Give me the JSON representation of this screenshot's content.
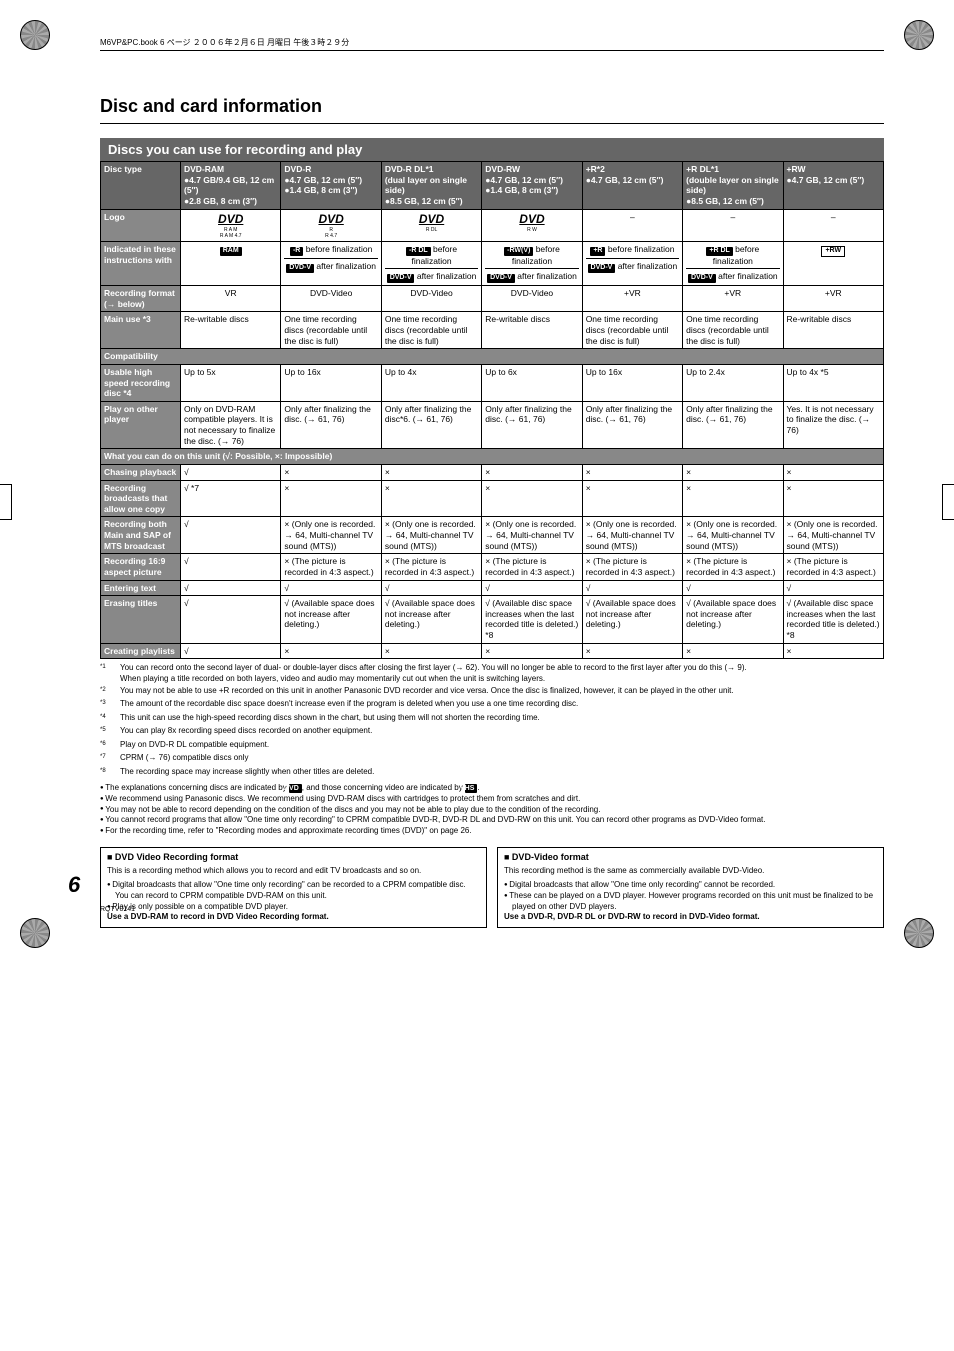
{
  "meta": {
    "file_line": "M6VP&PC.book 6 ページ ２００６年２月６日 月曜日 午後３時２９分",
    "page_number": "6",
    "page_code": "RQTV0141"
  },
  "title": "Disc and card information",
  "section_title": "Discs you can use for recording and play",
  "row_labels": {
    "disc_type": "Disc type",
    "logo": "Logo",
    "indicated": "Indicated in these instructions with",
    "rec_format": "Recording format (→ below)",
    "main_use": "Main use *3",
    "compat": "Compatibility",
    "speed": "Usable high speed recording disc *4",
    "play_other": "Play on other player",
    "what_you_can": "What you can do on this unit (√: Possible, ×: Impossible)",
    "chasing": "Chasing playback",
    "rec_one": "Recording broadcasts that allow one copy",
    "rec_sap": "Recording both Main and SAP of MTS broadcast",
    "rec_169": "Recording 16:9 aspect picture",
    "enter_text": "Entering text",
    "erase": "Erasing titles",
    "playlists": "Creating playlists"
  },
  "cols": [
    {
      "type": "DVD-RAM",
      "type_detail": "●4.7 GB/9.4 GB, 12 cm (5″)\n●2.8 GB, 8 cm (3″)",
      "logo_sub": "R A M\nR A M 4.7",
      "indicated_top": "RAM",
      "indicated_top_class": "tag",
      "indicated_bottom": "",
      "rec_format": "VR",
      "main_use": "Re-writable discs",
      "speed": "Up to 5x",
      "play_other": "Only on DVD-RAM compatible players. It is not necessary to finalize the disc. (→ 76)",
      "chasing": "√",
      "rec_one": "√ *7",
      "rec_sap": "√",
      "rec_169": "√",
      "enter_text": "√",
      "erase": "√",
      "playlists": "√"
    },
    {
      "type": "DVD-R",
      "type_detail": "●4.7 GB, 12 cm (5″)\n●1.4 GB, 8 cm (3″)",
      "logo_sub": "R\nR 4.7",
      "indicated_top": "-R",
      "indicated_top_suffix": " before finalization",
      "indicated_bottom": "DVD-V",
      "indicated_bottom_suffix": " after finalization",
      "rec_format": "DVD-Video",
      "main_use": "One time recording discs (recordable until the disc is full)",
      "speed": "Up to 16x",
      "play_other": "Only after finalizing the disc. (→ 61, 76)",
      "chasing": "×",
      "rec_one": "×",
      "rec_sap": "× (Only one is recorded. → 64, Multi-channel TV sound (MTS))",
      "rec_169": "× (The picture is recorded in 4:3 aspect.)",
      "enter_text": "√",
      "erase": "√ (Available space does not increase after deleting.)",
      "playlists": "×"
    },
    {
      "type": "DVD-R DL*1",
      "type_bold": "(dual layer on single side)",
      "type_detail": "●8.5 GB, 12 cm (5″)",
      "logo_sub": "R DL",
      "indicated_top": "-R DL",
      "indicated_top_suffix": " before finalization",
      "indicated_bottom": "DVD-V",
      "indicated_bottom_suffix": " after finalization",
      "rec_format": "DVD-Video",
      "main_use": "One time recording discs (recordable until the disc is full)",
      "speed": "Up to 4x",
      "play_other": "Only after finalizing the disc*6. (→ 61, 76)",
      "chasing": "×",
      "rec_one": "×",
      "rec_sap": "× (Only one is recorded. → 64, Multi-channel TV sound (MTS))",
      "rec_169": "× (The picture is recorded in 4:3 aspect.)",
      "enter_text": "√",
      "erase": "√ (Available space does not increase after deleting.)",
      "playlists": "×"
    },
    {
      "type": "DVD-RW",
      "type_detail": "●4.7 GB, 12 cm (5″)\n●1.4 GB, 8 cm (3″)",
      "logo_sub": "R W",
      "indicated_top": "-RW(V)",
      "indicated_top_suffix": " before finalization",
      "indicated_bottom": "DVD-V",
      "indicated_bottom_suffix": " after finalization",
      "rec_format": "DVD-Video",
      "main_use": "Re-writable discs",
      "speed": "Up to 6x",
      "play_other": "Only after finalizing the disc. (→ 61, 76)",
      "chasing": "×",
      "rec_one": "×",
      "rec_sap": "× (Only one is recorded. → 64, Multi-channel TV sound (MTS))",
      "rec_169": "× (The picture is recorded in 4:3 aspect.)",
      "enter_text": "√",
      "erase": "√ (Available disc space increases when the last recorded title is deleted.) *8",
      "playlists": "×"
    },
    {
      "type": "+R*2",
      "type_detail": "●4.7 GB, 12 cm (5″)",
      "logo_sub": "–",
      "indicated_top": "+R",
      "indicated_top_suffix": " before finalization",
      "indicated_bottom": "DVD-V",
      "indicated_bottom_suffix": " after finalization",
      "rec_format": "+VR",
      "main_use": "One time recording discs (recordable until the disc is full)",
      "speed": "Up to 16x",
      "play_other": "Only after finalizing the disc. (→ 61, 76)",
      "chasing": "×",
      "rec_one": "×",
      "rec_sap": "× (Only one is recorded. → 64, Multi-channel TV sound (MTS))",
      "rec_169": "× (The picture is recorded in 4:3 aspect.)",
      "enter_text": "√",
      "erase": "√ (Available space does not increase after deleting.)",
      "playlists": "×"
    },
    {
      "type": "+R DL*1",
      "type_bold": "(double layer on single side)",
      "type_detail": "●8.5 GB, 12 cm (5″)",
      "logo_sub": "–",
      "indicated_top": "+R DL",
      "indicated_top_suffix": " before finalization",
      "indicated_bottom": "DVD-V",
      "indicated_bottom_suffix": " after finalization",
      "rec_format": "+VR",
      "main_use": "One time recording discs (recordable until the disc is full)",
      "speed": "Up to 2.4x",
      "play_other": "Only after finalizing the disc. (→ 61, 76)",
      "chasing": "×",
      "rec_one": "×",
      "rec_sap": "× (Only one is recorded. → 64, Multi-channel TV sound (MTS))",
      "rec_169": "× (The picture is recorded in 4:3 aspect.)",
      "enter_text": "√",
      "erase": "√ (Available space does not increase after deleting.)",
      "playlists": "×"
    },
    {
      "type": "+RW",
      "type_detail": "●4.7 GB, 12 cm (5″)",
      "logo_sub": "–",
      "indicated_top": "+RW",
      "indicated_top_class": "tag-outline",
      "indicated_bottom": "",
      "rec_format": "+VR",
      "main_use": "Re-writable discs",
      "speed": "Up to 4x *5",
      "play_other": "Yes. It is not necessary to finalize the disc. (→ 76)",
      "chasing": "×",
      "rec_one": "×",
      "rec_sap": "× (Only one is recorded. → 64, Multi-channel TV sound (MTS))",
      "rec_169": "× (The picture is recorded in 4:3 aspect.)",
      "enter_text": "√",
      "erase": "√ (Available disc space increases when the last recorded title is deleted.) *8",
      "playlists": "×"
    }
  ],
  "footnotes": [
    {
      "sup": "*1",
      "text": "You can record onto the second layer of dual- or double-layer discs after closing the first layer (→ 62). You will no longer be able to record to the first layer after you do this (→ 9).\nWhen playing a title recorded on both layers, video and audio may momentarily cut out when the unit is switching layers."
    },
    {
      "sup": "*2",
      "text": "You may not be able to use +R recorded on this unit in another Panasonic DVD recorder and vice versa. Once the disc is finalized, however, it can be played in the other unit."
    },
    {
      "sup": "*3",
      "text": "The amount of the recordable disc space doesn't increase even if the program is deleted when you use a one time recording disc."
    },
    {
      "sup": "*4",
      "text": "This unit can use the high-speed recording discs shown in the chart, but using them will not shorten the recording time."
    },
    {
      "sup": "*5",
      "text": "You can play 8x recording speed discs recorded on another equipment."
    },
    {
      "sup": "*6",
      "text": "Play on DVD-R DL compatible equipment."
    },
    {
      "sup": "*7",
      "text": "CPRM (→ 76) compatible discs only"
    },
    {
      "sup": "*8",
      "text": "The recording space may increase slightly when other titles are deleted."
    }
  ],
  "bullets": [
    "The explanations concerning discs are indicated by DVD, and those concerning video are indicated by VHS.",
    "We recommend using Panasonic discs. We recommend using DVD-RAM discs with cartridges to protect them from scratches and dirt.",
    "You may not be able to record depending on the condition of the discs and you may not be able to play due to the condition of the recording.",
    "You cannot record programs that allow \"One time only recording\" to CPRM compatible DVD-R, DVD-R DL and DVD-RW on this unit. You can record other programs as DVD-Video format.",
    "For the recording time, refer to \"Recording modes and approximate recording times (DVD)\" on page 26."
  ],
  "dvr_box": {
    "title": "■ DVD Video Recording format",
    "body": "This is a recording method which allows you to record and edit TV broadcasts and so on.",
    "b1": "Digital broadcasts that allow \"One time only recording\" can be recorded to a CPRM compatible disc. You can record to CPRM compatible DVD-RAM on this unit.",
    "b2": "Play is only possible on a compatible DVD player.",
    "bold": "Use a DVD-RAM to record in DVD Video Recording format."
  },
  "dvd_box": {
    "title": "■ DVD-Video format",
    "body": "This recording method is the same as commercially available DVD-Video.",
    "b1": "Digital broadcasts that allow \"One time only recording\" cannot be recorded.",
    "b2": "These can be played on a DVD player. However programs recorded on this unit must be finalized to be played on other DVD players.",
    "bold": "Use a DVD-R, DVD-R DL or DVD-RW to record in DVD-Video format."
  }
}
